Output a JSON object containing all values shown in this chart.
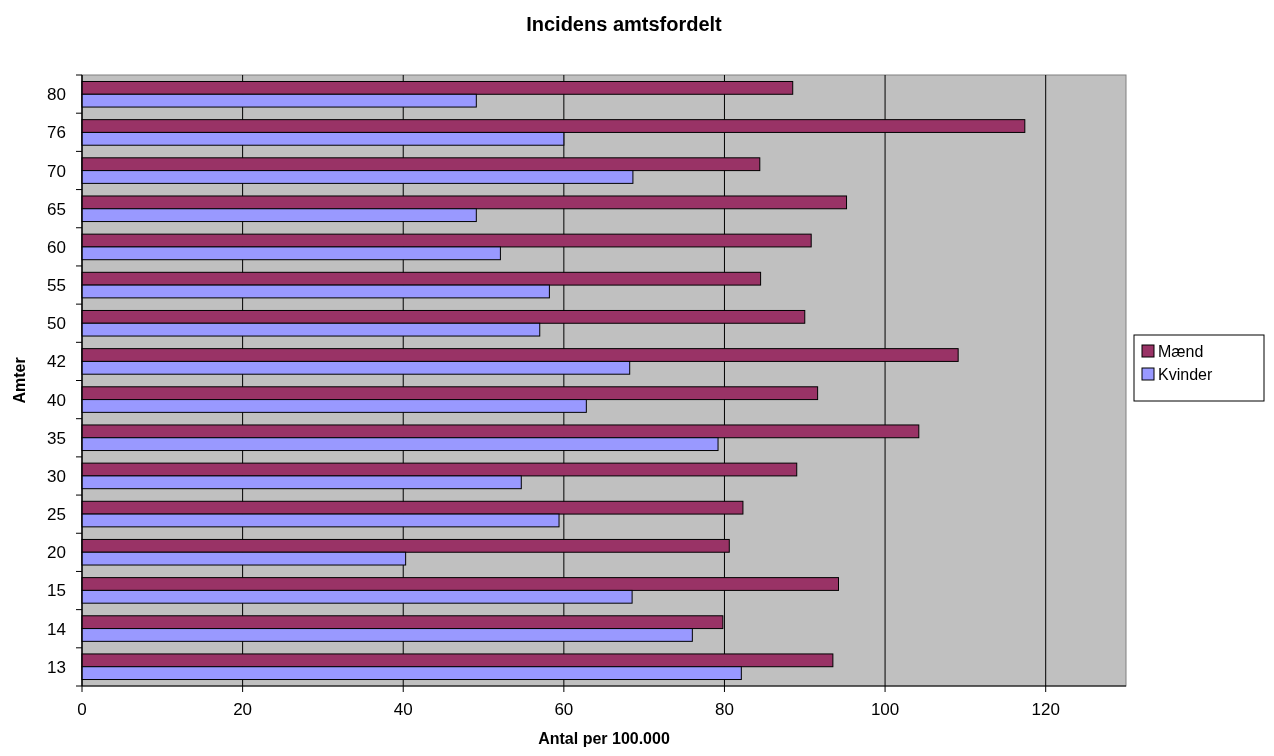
{
  "chart_data": {
    "type": "bar",
    "orientation": "horizontal",
    "title": "Incidens amtsfordelt",
    "xlabel": "Antal per 100.000",
    "ylabel": "Amter",
    "categories": [
      "80",
      "76",
      "70",
      "65",
      "60",
      "55",
      "50",
      "42",
      "40",
      "35",
      "30",
      "25",
      "20",
      "15",
      "14",
      "13"
    ],
    "series": [
      {
        "name": "Mænd",
        "color": "#993366",
        "values": [
          88.5,
          117.4,
          84.4,
          95.2,
          90.8,
          84.5,
          90.0,
          109.1,
          91.6,
          104.2,
          89.0,
          82.3,
          80.6,
          94.2,
          79.8,
          93.5
        ]
      },
      {
        "name": "Kvinder",
        "color": "#9999ff",
        "values": [
          49.1,
          60.0,
          68.6,
          49.1,
          52.1,
          58.2,
          57.0,
          68.2,
          62.8,
          79.2,
          54.7,
          59.4,
          40.3,
          68.5,
          76.0,
          82.1
        ]
      }
    ],
    "xlim": [
      0,
      130
    ],
    "xticks": [
      0,
      20,
      40,
      60,
      80,
      100,
      120
    ],
    "grid": "x",
    "legend": "right"
  }
}
